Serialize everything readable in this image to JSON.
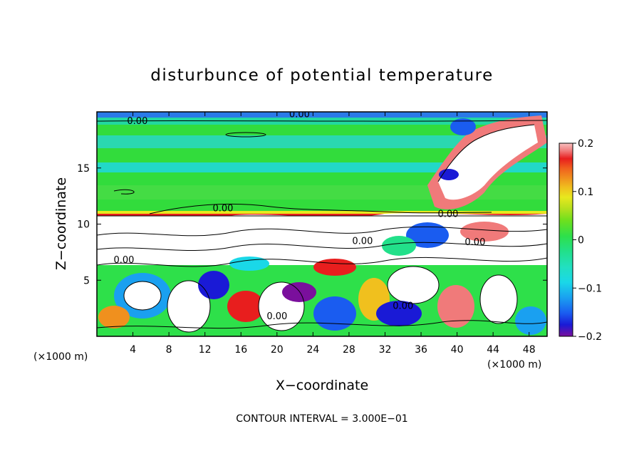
{
  "chart_data": {
    "type": "heatmap",
    "title": "disturbunce of potential temperature",
    "xlabel": "X−coordinate",
    "ylabel": "Z−coordinate",
    "x_unit_left": "(×1000 m)",
    "x_unit_right": "(×1000 m)",
    "footer": "CONTOUR INTERVAL = 3.000E−01",
    "xlim": [
      0,
      50
    ],
    "ylim": [
      0,
      20
    ],
    "x_ticks": [
      4,
      8,
      12,
      16,
      20,
      24,
      28,
      32,
      36,
      40,
      44,
      48
    ],
    "x_tick_labels": [
      "4",
      "8",
      "12",
      "16",
      "20",
      "24",
      "28",
      "32",
      "36",
      "40",
      "44",
      "48"
    ],
    "y_ticks": [
      5,
      10,
      15
    ],
    "y_tick_labels": [
      "5",
      "10",
      "15"
    ],
    "colorbar": {
      "min": -0.2,
      "max": 0.2,
      "ticks": [
        0.2,
        0.1,
        0,
        -0.1,
        -0.2
      ],
      "tick_labels": [
        "0.2",
        "0.1",
        "0",
        "−0.1",
        "−0.2"
      ],
      "colors": [
        "#7a0f9c",
        "#1a1ad6",
        "#1a5cf0",
        "#1aa0f0",
        "#1ad8e8",
        "#22e0c0",
        "#22e08a",
        "#2ee04a",
        "#6ee01e",
        "#b4e01e",
        "#e8e81e",
        "#f0c01e",
        "#f0901e",
        "#f0601e",
        "#e81e1e",
        "#f07a7a",
        "#f8c0c0"
      ]
    },
    "contour_labels": [
      {
        "text": "0.00",
        "x": 4.5,
        "z": 19.0
      },
      {
        "text": "0.00",
        "x": 22.5,
        "z": 19.6
      },
      {
        "text": "0.00",
        "x": 14.0,
        "z": 11.2
      },
      {
        "text": "0.00",
        "x": 39.0,
        "z": 10.7
      },
      {
        "text": "0.00",
        "x": 29.5,
        "z": 8.3
      },
      {
        "text": "0.00",
        "x": 42.0,
        "z": 8.2
      },
      {
        "text": "0.00",
        "x": 20.0,
        "z": 1.6
      },
      {
        "text": "0.00",
        "x": 34.0,
        "z": 2.5
      },
      {
        "text": "0.00",
        "x": 3.0,
        "z": 6.6
      }
    ]
  }
}
